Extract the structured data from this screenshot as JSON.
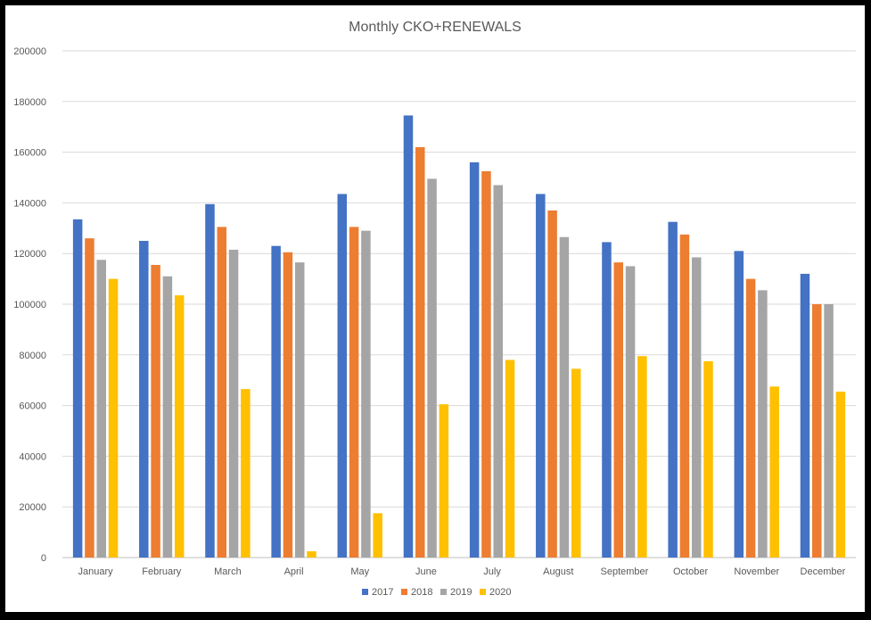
{
  "chart_data": {
    "type": "bar",
    "title": "Monthly CKO+RENEWALS",
    "xlabel": "",
    "ylabel": "",
    "ylim": [
      0,
      200000
    ],
    "y_ticks": [
      "0",
      "20000",
      "40000",
      "60000",
      "80000",
      "100000",
      "120000",
      "140000",
      "160000",
      "180000",
      "200000"
    ],
    "y_tick_values": [
      0,
      20000,
      40000,
      60000,
      80000,
      100000,
      120000,
      140000,
      160000,
      180000,
      200000
    ],
    "grid": true,
    "legend_position": "bottom",
    "categories": [
      "January",
      "February",
      "March",
      "April",
      "May",
      "June",
      "July",
      "August",
      "September",
      "October",
      "November",
      "December"
    ],
    "series": [
      {
        "name": "2017",
        "color": "#4472C4",
        "values": [
          133500,
          125000,
          139500,
          123000,
          143500,
          174500,
          156000,
          143500,
          124500,
          132500,
          121000,
          112000
        ]
      },
      {
        "name": "2018",
        "color": "#ED7D31",
        "values": [
          126000,
          115500,
          130500,
          120500,
          130500,
          162000,
          152500,
          137000,
          116500,
          127500,
          110000,
          100000
        ]
      },
      {
        "name": "2019",
        "color": "#A5A5A5",
        "values": [
          117500,
          111000,
          121500,
          116500,
          129000,
          149500,
          147000,
          126500,
          115000,
          118500,
          105500,
          100000
        ]
      },
      {
        "name": "2020",
        "color": "#FFC000",
        "values": [
          110000,
          103500,
          66500,
          2500,
          17500,
          60500,
          78000,
          74500,
          79500,
          77500,
          67500,
          65500
        ]
      }
    ]
  }
}
